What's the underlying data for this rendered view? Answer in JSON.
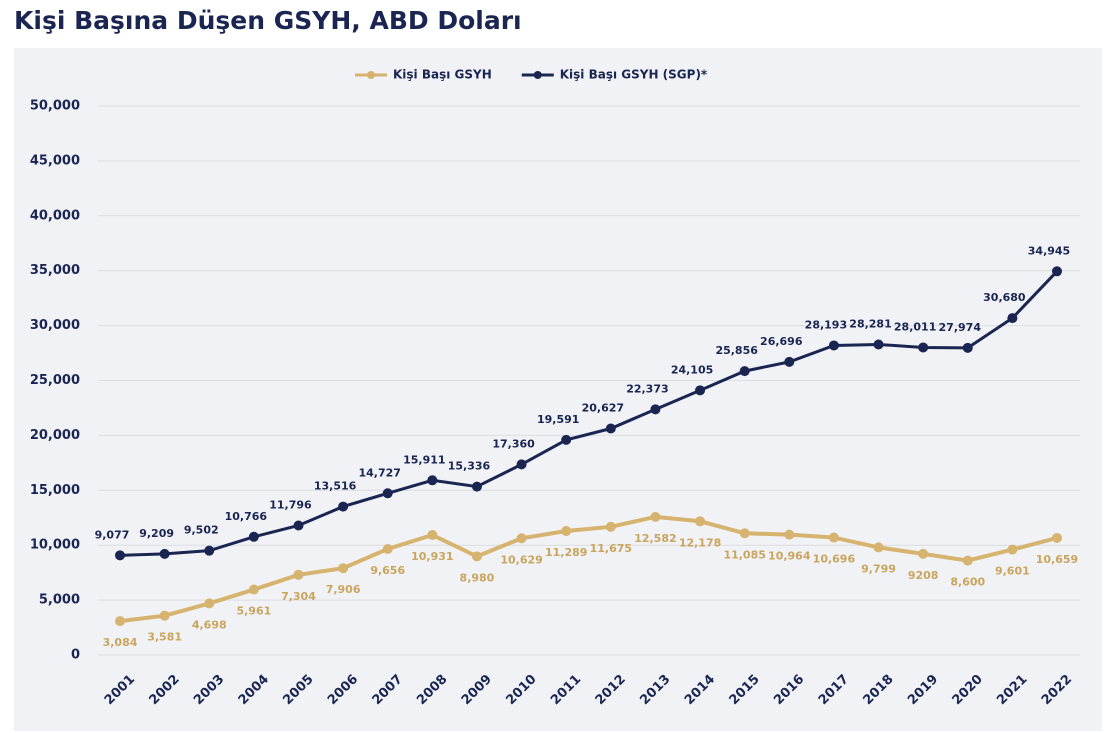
{
  "chart_data": {
    "type": "line",
    "title": "Kişi Başına Düşen GSYH, ABD Doları",
    "categories": [
      "2001",
      "2002",
      "2003",
      "2004",
      "2005",
      "2006",
      "2007",
      "2008",
      "2009",
      "2010",
      "2011",
      "2012",
      "2013",
      "2014",
      "2015",
      "2016",
      "2017",
      "2018",
      "2019",
      "2020",
      "2021",
      "2022"
    ],
    "series": [
      {
        "name": "Kişi Başı GSYH",
        "color": "#d6b36e",
        "values": [
          3084,
          3581,
          4698,
          5961,
          7304,
          7906,
          9656,
          10931,
          8980,
          10629,
          11289,
          11675,
          12582,
          12178,
          11085,
          10964,
          10696,
          9799,
          9208,
          8600,
          9601,
          10659
        ],
        "value_labels": [
          "3,084",
          "3,581",
          "4,698",
          "5,961",
          "7,304",
          "7,906",
          "9,656",
          "10,931",
          "8,980",
          "10,629",
          "11,289",
          "11,675",
          "12,582",
          "12,178",
          "11,085",
          "10,964",
          "10,696",
          "9,799",
          "9208",
          "8,600",
          "9,601",
          "10,659"
        ]
      },
      {
        "name": "Kişi Başı GSYH (SGP)*",
        "color": "#1b2552",
        "values": [
          9077,
          9209,
          9502,
          10766,
          11796,
          13516,
          14727,
          15911,
          15336,
          17360,
          19591,
          20627,
          22373,
          24105,
          25856,
          26696,
          28193,
          28281,
          28011,
          27974,
          30680,
          34945
        ],
        "value_labels": [
          "9,077",
          "9,209",
          "9,502",
          "10,766",
          "11,796",
          "13,516",
          "14,727",
          "15,911",
          "15,336",
          "17,360",
          "19,591",
          "20,627",
          "22,373",
          "24,105",
          "25,856",
          "26,696",
          "28,193",
          "28,281",
          "28,011",
          "27,974",
          "30,680",
          "34,945"
        ]
      }
    ],
    "ylim": [
      0,
      50000
    ],
    "yticks": [
      0,
      {
        "value": 5000,
        "label": "5,000"
      },
      {
        "value": 10000,
        "label": "10,000"
      },
      {
        "value": 15000,
        "label": "15,000"
      },
      {
        "value": 20000,
        "label": "20,000"
      },
      {
        "value": 25000,
        "label": "25,000"
      },
      {
        "value": 30000,
        "label": "30,000"
      },
      {
        "value": 35000,
        "label": "35,000"
      },
      {
        "value": 40000,
        "label": "40,000"
      },
      {
        "value": 45000,
        "label": "45,000"
      },
      {
        "value": 50000,
        "label": "50,000"
      }
    ],
    "grid": true,
    "legend": "top"
  }
}
